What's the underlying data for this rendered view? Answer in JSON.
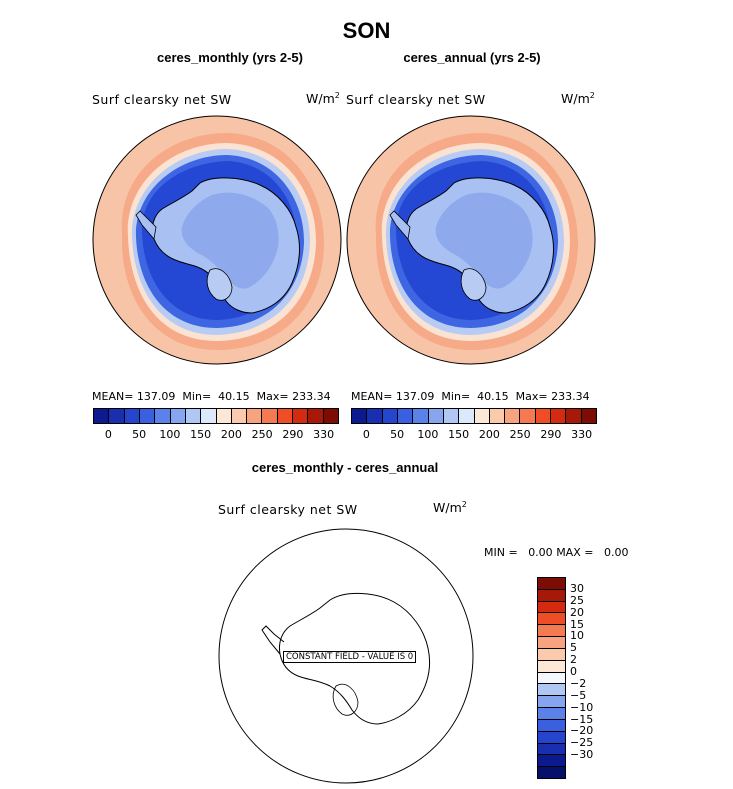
{
  "figure": {
    "title": "SON"
  },
  "panels": [
    {
      "title": "ceres_monthly (yrs 2-5)",
      "variable": "Surf clearsky net SW",
      "units_base": "W/m",
      "units_exp": "2",
      "stats": {
        "mean_label": "MEAN=",
        "mean": "137.09",
        "min_label": "Min=",
        "min": "40.15",
        "max_label": "Max=",
        "max": "233.34"
      }
    },
    {
      "title": "ceres_annual (yrs 2-5)",
      "variable": "Surf clearsky net SW",
      "units_base": "W/m",
      "units_exp": "2",
      "stats": {
        "mean_label": "MEAN=",
        "mean": "137.09",
        "min_label": "Min=",
        "min": "40.15",
        "max_label": "Max=",
        "max": "233.34"
      }
    }
  ],
  "colorbar_main": {
    "colors": [
      "#0c1a8f",
      "#1a2fb0",
      "#2645cf",
      "#3a60e0",
      "#5a82e8",
      "#85a5ee",
      "#b0c6f3",
      "#dce8fb",
      "#fde7d6",
      "#fbc9ac",
      "#f7a37f",
      "#f47a52",
      "#ef4d26",
      "#d32a10",
      "#a81808",
      "#7d0d04"
    ],
    "labels": [
      "0",
      "50",
      "100",
      "150",
      "200",
      "250",
      "290",
      "330"
    ]
  },
  "diff": {
    "title": "ceres_monthly - ceres_annual",
    "variable": "Surf clearsky net SW",
    "units_base": "W/m",
    "units_exp": "2",
    "min_label": "MIN =",
    "min": "0.00",
    "max_label": "MAX =",
    "max": "0.00",
    "annotation": "CONSTANT FIELD - VALUE IS 0",
    "colorbar": {
      "colors": [
        "#7d0d04",
        "#a81808",
        "#d32a10",
        "#ef4d26",
        "#f47a52",
        "#f7a37f",
        "#fbc9ac",
        "#fde7d6",
        "#f4f7fd",
        "#b0c6f3",
        "#85a5ee",
        "#5a82e8",
        "#3a60e0",
        "#2645cf",
        "#1a2fb0",
        "#0c1a8f",
        "#06106a"
      ],
      "labels": [
        "30",
        "25",
        "20",
        "15",
        "10",
        "5",
        "2",
        "0",
        "−2",
        "−5",
        "−10",
        "−15",
        "−20",
        "−25",
        "−30"
      ]
    }
  }
}
